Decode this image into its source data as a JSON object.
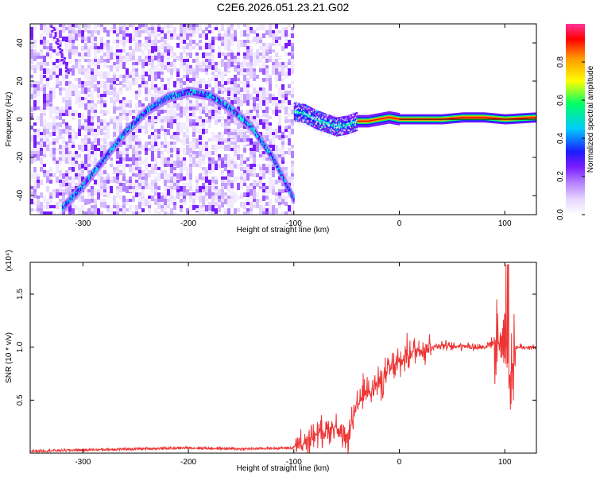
{
  "title": "C2E6.2026.051.23.21.G02",
  "chart_data": [
    {
      "type": "heatmap",
      "xlabel": "Height of straight line (km)",
      "ylabel": "Frequency (Hz)",
      "xlim": [
        -350,
        130
      ],
      "ylim": [
        -50,
        50
      ],
      "x_ticks": [
        -300,
        -200,
        -100,
        0,
        100
      ],
      "y_ticks": [
        -40,
        -20,
        0,
        20,
        40
      ],
      "colorbar": {
        "label": "Normalized spectral amplitude",
        "range": [
          0.0,
          1.0
        ],
        "ticks": [
          0.0,
          0.2,
          0.4,
          0.6,
          0.8
        ],
        "tick_labels": [
          "0.0",
          "0.2",
          "0.4",
          "0.6",
          "0.8"
        ],
        "colors": [
          "#ffffff",
          "#e6d6ff",
          "#b27fff",
          "#7a1cff",
          "#1d1dff",
          "#00ccff",
          "#00ff66",
          "#ffff00",
          "#ff9900",
          "#ff0000",
          "#ff3399"
        ]
      },
      "arc": {
        "description_points_x": [
          -320,
          -300,
          -280,
          -260,
          -240,
          -220,
          -200,
          -180,
          -160,
          -140,
          -120,
          -100
        ],
        "description_points_y": [
          -46,
          -34,
          -20,
          -6,
          5,
          12,
          15,
          13,
          6,
          -4,
          -20,
          -42
        ]
      },
      "tail": {
        "x": [
          -100,
          -90,
          -80,
          -70,
          -60,
          -50,
          -40,
          -30,
          -20,
          -10,
          0,
          20,
          40,
          60,
          80,
          100,
          130
        ],
        "y": [
          4,
          3,
          0,
          -2,
          -4,
          -3,
          -1,
          -1,
          0,
          1,
          0,
          0,
          0,
          1,
          1,
          0,
          1
        ]
      },
      "noise_region_x": [
        -350,
        -100
      ]
    },
    {
      "type": "line",
      "xlabel": "Height of straight line (km)",
      "ylabel": "SNR (10 * v/v)",
      "y_multiplier_label": "(x10⁴)",
      "xlim": [
        -350,
        130
      ],
      "ylim": [
        0,
        1.8
      ],
      "x_ticks": [
        -300,
        -200,
        -100,
        0,
        100
      ],
      "y_ticks": [
        0.5,
        1.0,
        1.5
      ],
      "y_tick_labels": [
        "0.5",
        "1.0",
        "1.5"
      ],
      "series": [
        {
          "name": "SNR",
          "color": "#ee3333",
          "x": [
            -350,
            -300,
            -250,
            -200,
            -150,
            -100,
            -90,
            -80,
            -70,
            -60,
            -55,
            -50,
            -45,
            -40,
            -35,
            -30,
            -25,
            -20,
            -15,
            -10,
            -5,
            0,
            5,
            10,
            20,
            30,
            40,
            50,
            60,
            70,
            80,
            90,
            100,
            105,
            110,
            120,
            130
          ],
          "values": [
            0.02,
            0.03,
            0.04,
            0.05,
            0.04,
            0.05,
            0.08,
            0.18,
            0.22,
            0.25,
            0.15,
            0.1,
            0.3,
            0.42,
            0.55,
            0.6,
            0.62,
            0.65,
            0.7,
            0.78,
            0.82,
            0.85,
            0.9,
            0.95,
            0.98,
            1.0,
            1.02,
            1.0,
            1.02,
            1.0,
            1.0,
            1.05,
            1.1,
            0.7,
            1.0,
            1.0,
            1.0
          ]
        }
      ]
    }
  ]
}
